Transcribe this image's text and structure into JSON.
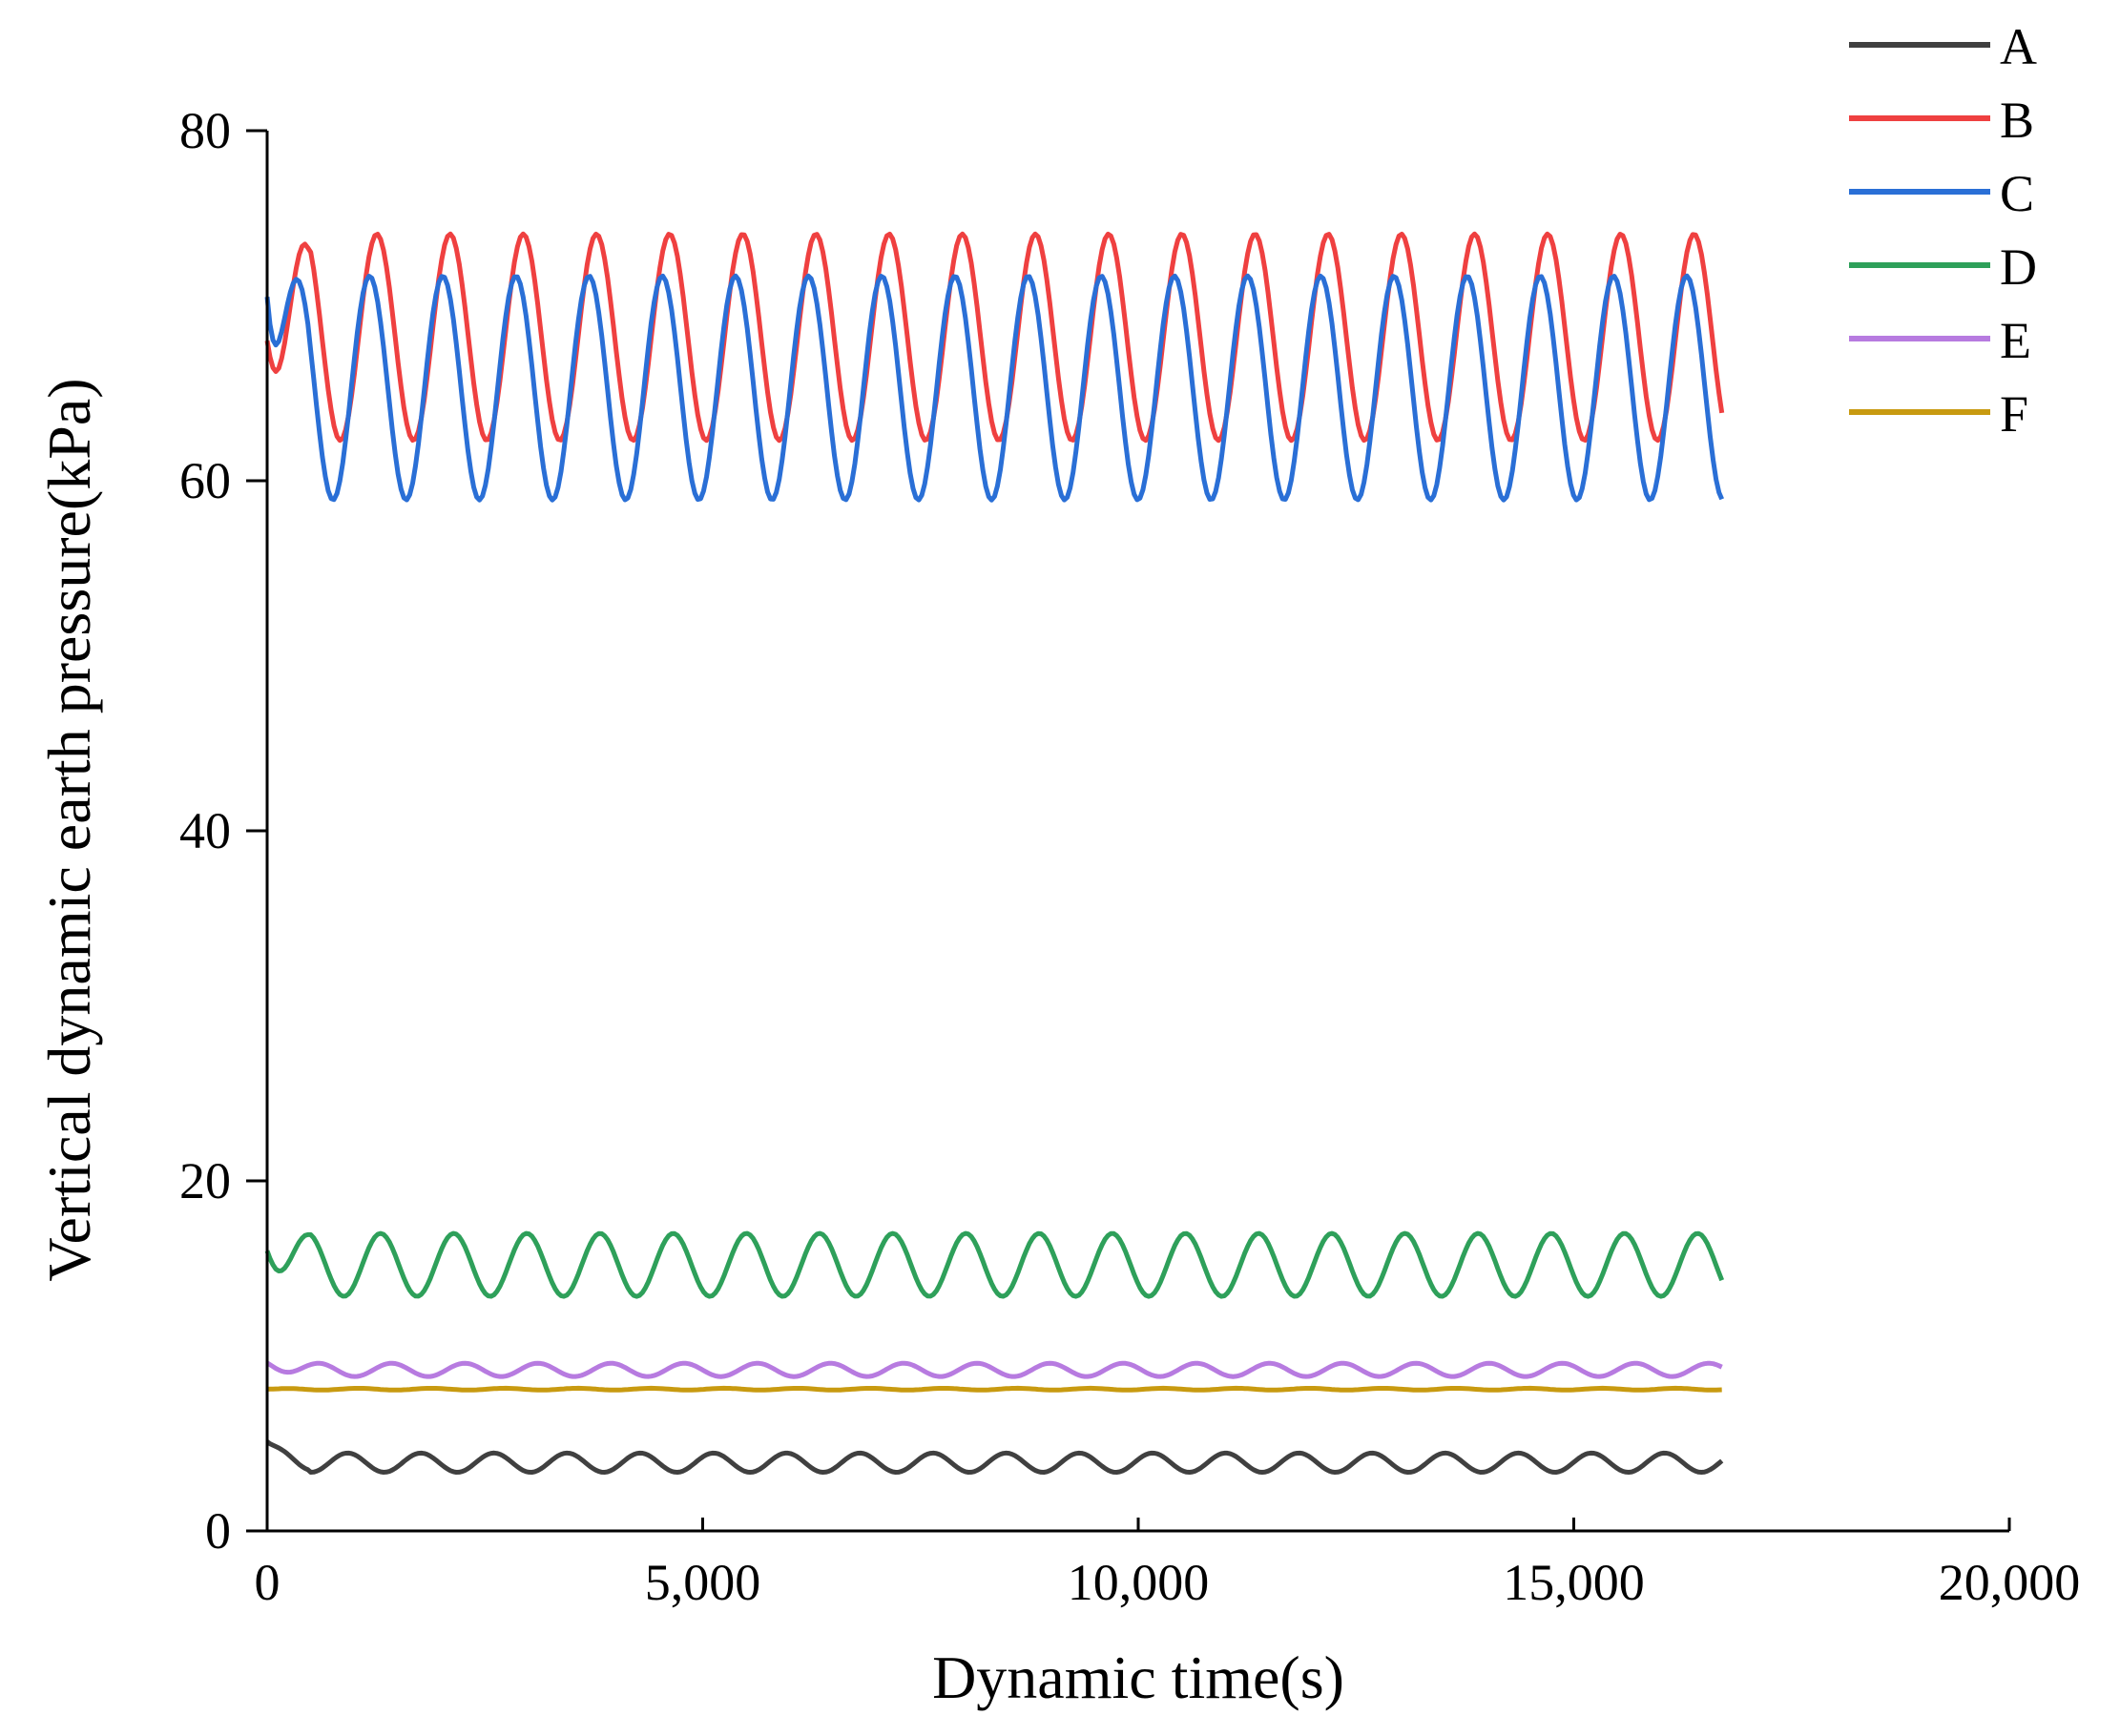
{
  "chart_data": {
    "type": "line",
    "title": "",
    "xlabel": "Dynamic time(s)",
    "ylabel": "Vertical dynamic earth pressure(kPa)",
    "xlim": [
      0,
      20000
    ],
    "ylim": [
      0,
      80
    ],
    "xticks": [
      0,
      5000,
      10000,
      15000,
      20000
    ],
    "xtick_labels": [
      "0",
      "5,000",
      "10,000",
      "15,000",
      "20,000"
    ],
    "yticks": [
      0,
      20,
      40,
      60,
      80
    ],
    "ytick_labels": [
      "0",
      "20",
      "40",
      "60",
      "80"
    ],
    "grid": false,
    "legend_position": "top-right",
    "x_end": 16700,
    "period": 840,
    "series": [
      {
        "name": "A",
        "color": "#404040",
        "mean": 3.9,
        "amplitude": 0.55,
        "phase": 0.15,
        "start_value": 5.1
      },
      {
        "name": "B",
        "color": "#ef4040",
        "mean": 68.2,
        "amplitude": 5.9,
        "phase": 0.75,
        "start_value": 68.0
      },
      {
        "name": "C",
        "color": "#2a6fd6",
        "mean": 65.3,
        "amplitude": 6.4,
        "phase": 0.85,
        "start_value": 70.5
      },
      {
        "name": "D",
        "color": "#2ea05a",
        "mean": 15.2,
        "amplitude": 1.8,
        "phase": 0.7,
        "start_value": 16.0
      },
      {
        "name": "E",
        "color": "#b77be0",
        "mean": 9.2,
        "amplitude": 0.38,
        "phase": 0.55,
        "start_value": 9.6
      },
      {
        "name": "F",
        "color": "#c89a10",
        "mean": 8.1,
        "amplitude": 0.05,
        "phase": 0.0,
        "start_value": 8.1
      }
    ]
  }
}
